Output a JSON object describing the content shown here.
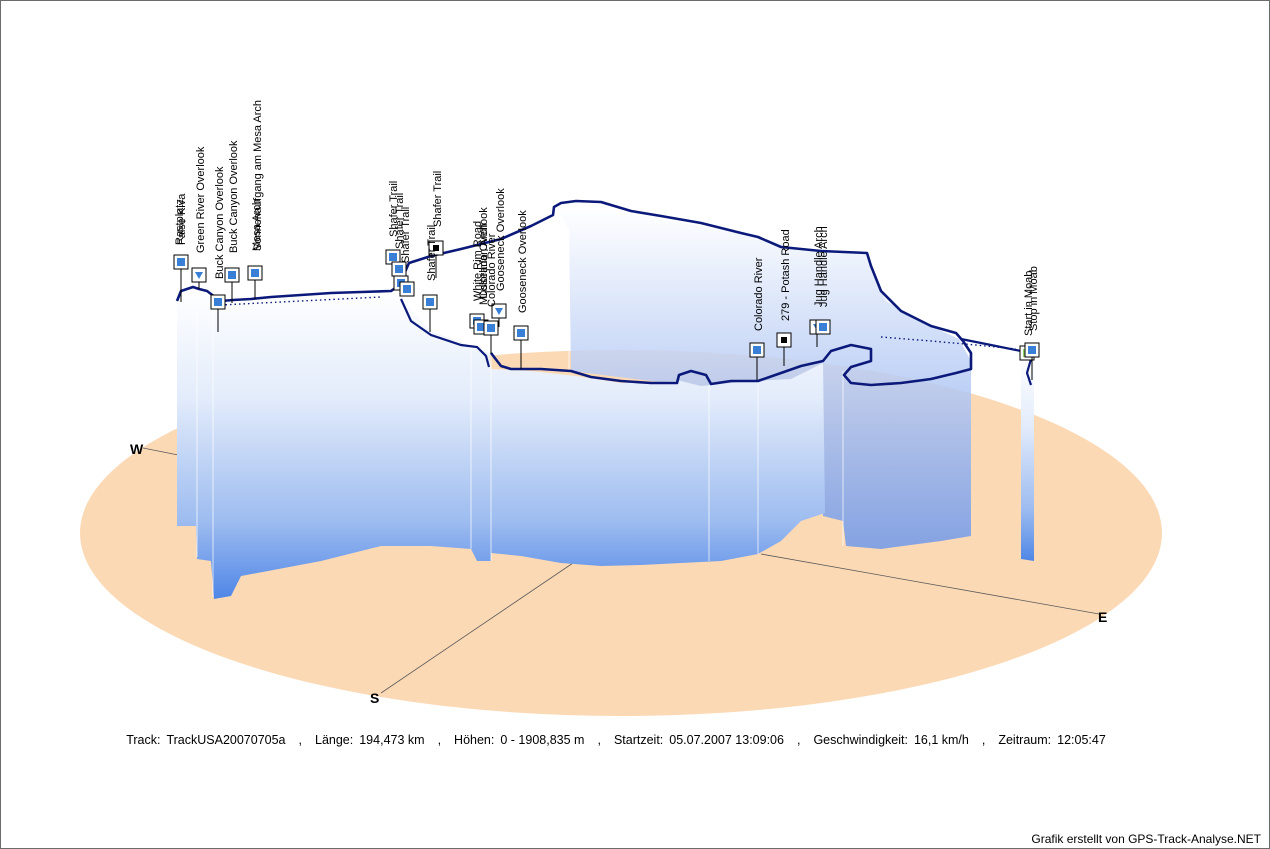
{
  "chart_data": {
    "type": "area",
    "view": "3d-elevation-profile",
    "base_color": "#fcd9b5",
    "profile_color_top": "#ffffff",
    "profile_color_bottom": "#4f86e6",
    "track_color": "#0b1a7a",
    "compass": {
      "west": "W",
      "south": "S",
      "east": "E"
    },
    "waypoints": [
      "False Kiva",
      "Rastplatz",
      "Green River Overlook",
      "Buck Canyon Overlook",
      "Buck Canyon Overlook",
      "Mesa Arch",
      "Sonnenaufgang am Mesa Arch",
      "Shafer Trail",
      "Shafer Trail",
      "Shafer Trail",
      "Shafer Trail",
      "Shafer Trail",
      "White Rim Road",
      "Musselman Arch",
      "Colorado River",
      "Colorado Overlook",
      "Gooseneck Overlook",
      "Gooseneck Overlook",
      "Colorado River",
      "279 - Potash Road",
      "Jug Handle Arch",
      "Jug Handle Arch",
      "Start in Moab",
      "Stop in Moab"
    ]
  },
  "info": {
    "track_label": "Track:",
    "track_value": "TrackUSA20070705a",
    "length_label": "Länge:",
    "length_value": "194,473 km",
    "height_label": "Höhen:",
    "height_value": "0 - 1908,835 m",
    "start_label": "Startzeit:",
    "start_value": "05.07.2007 13:09:06",
    "speed_label": "Geschwindigkeit:",
    "speed_value": "16,1 km/h",
    "period_label": "Zeitraum:",
    "period_value": "12:05:47",
    "separator": ","
  },
  "credit": "Grafik erstellt von GPS-Track-Analyse.NET"
}
